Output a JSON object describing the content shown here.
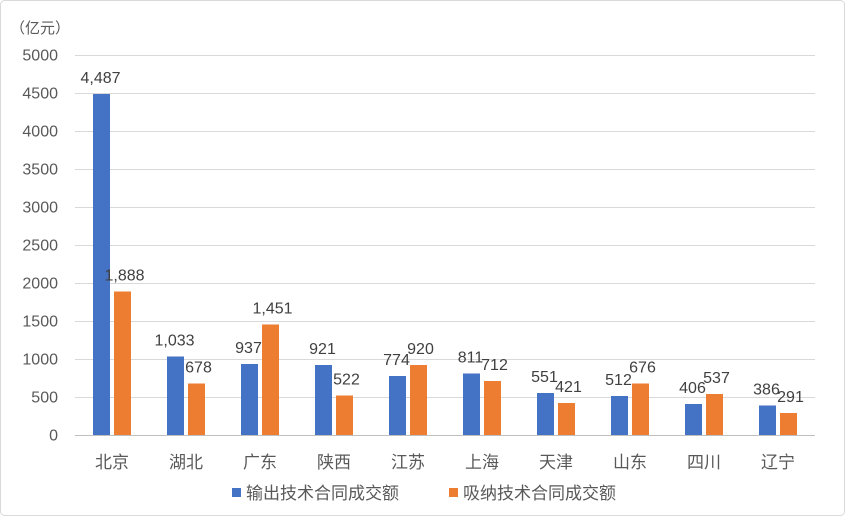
{
  "chart_data": {
    "type": "bar",
    "ylabel": "（亿元）",
    "ylim": [
      0,
      5000
    ],
    "yticks": [
      0,
      500,
      1000,
      1500,
      2000,
      2500,
      3000,
      3500,
      4000,
      4500,
      5000
    ],
    "grid": true,
    "legend": "bottom",
    "categories": [
      "北京",
      "湖北",
      "广东",
      "陕西",
      "江苏",
      "上海",
      "天津",
      "山东",
      "四川",
      "辽宁"
    ],
    "series": [
      {
        "name": "输出技术合同成交额",
        "color": "#4472C4",
        "values": [
          4487,
          1033,
          937,
          921,
          774,
          811,
          551,
          512,
          406,
          386
        ]
      },
      {
        "name": "吸纳技术合同成交额",
        "color": "#ED7D31",
        "values": [
          1888,
          678,
          1451,
          522,
          920,
          712,
          421,
          676,
          537,
          291
        ]
      }
    ]
  }
}
